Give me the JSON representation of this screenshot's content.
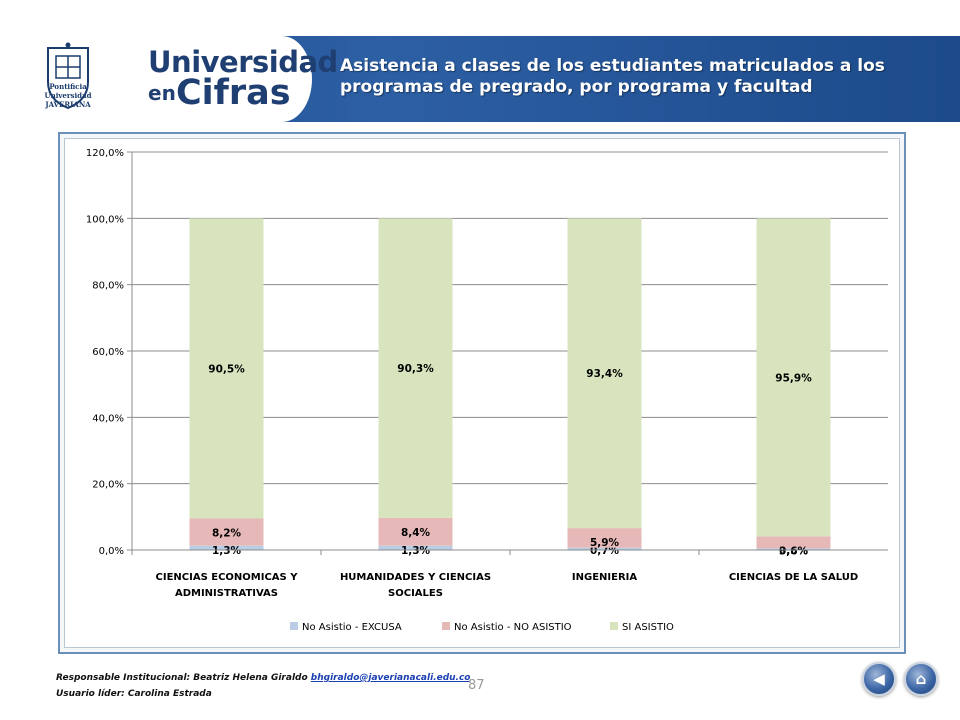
{
  "header": {
    "brand_line1": "Universidad",
    "brand_line2_prefix": "en",
    "brand_line2_word": "Cifras",
    "title": "Asistencia a clases de los estudiantes matriculados a los programas de pregrado, por programa y facultad"
  },
  "crest": {
    "label_line1": "Pontificia Universidad",
    "label_line2": "JAVERIANA"
  },
  "chart_data": {
    "type": "bar",
    "stacked": true,
    "categories": [
      [
        "CIENCIAS ECONOMICAS Y",
        "ADMINISTRATIVAS"
      ],
      [
        "HUMANIDADES Y CIENCIAS",
        "SOCIALES"
      ],
      [
        "INGENIERIA"
      ],
      [
        "CIENCIAS DE LA SALUD"
      ]
    ],
    "series": [
      {
        "name": "No Asistio - EXCUSA",
        "color": "#b9cde5",
        "values": [
          1.3,
          1.3,
          0.7,
          0.5
        ],
        "labels": [
          "1,3%",
          "1,3%",
          "0,7%",
          "0,5%"
        ]
      },
      {
        "name": "No Asistio - NO ASISTIO",
        "color": "#e6b9b8",
        "values": [
          8.2,
          8.4,
          5.9,
          3.6
        ],
        "labels": [
          "8,2%",
          "8,4%",
          "5,9%",
          "3,6%"
        ]
      },
      {
        "name": "SI ASISTIO",
        "color": "#d7e4bd",
        "values": [
          90.5,
          90.3,
          93.4,
          95.9
        ],
        "labels": [
          "90,5%",
          "90,3%",
          "93,4%",
          "95,9%"
        ]
      }
    ],
    "yticks": [
      "0,0%",
      "20,0%",
      "40,0%",
      "60,0%",
      "80,0%",
      "100,0%",
      "120,0%"
    ],
    "ylim": [
      0,
      120
    ],
    "grid": true,
    "legend": "bottom"
  },
  "footer": {
    "responsible_label": "Responsable Institucional: Beatriz Helena Giraldo",
    "email": "bhgiraldo@javerianacali.edu.co",
    "user_label": "Usuario líder: Carolina Estrada",
    "page_number": "87"
  },
  "nav": {
    "back_icon": "back-arrow-icon",
    "home_icon": "home-icon"
  }
}
